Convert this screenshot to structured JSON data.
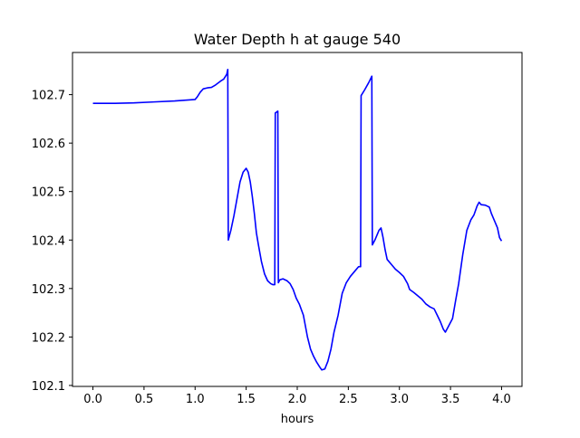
{
  "chart_data": {
    "type": "line",
    "title": "Water Depth h at gauge 540",
    "xlabel": "hours",
    "ylabel": "",
    "xlim": [
      -0.2,
      4.2
    ],
    "ylim": [
      102.098,
      102.787
    ],
    "xticks": [
      0.0,
      0.5,
      1.0,
      1.5,
      2.0,
      2.5,
      3.0,
      3.5,
      4.0
    ],
    "xtick_labels": [
      "0.0",
      "0.5",
      "1.0",
      "1.5",
      "2.0",
      "2.5",
      "3.0",
      "3.5",
      "4.0"
    ],
    "yticks": [
      102.1,
      102.2,
      102.3,
      102.4,
      102.5,
      102.6,
      102.7
    ],
    "ytick_labels": [
      "102.1",
      "102.2",
      "102.3",
      "102.4",
      "102.5",
      "102.6",
      "102.7"
    ],
    "grid": false,
    "series": [
      {
        "color": "#0000ff",
        "x": [
          0.0,
          0.2,
          0.4,
          0.6,
          0.8,
          1.0,
          1.02,
          1.05,
          1.08,
          1.12,
          1.16,
          1.2,
          1.25,
          1.28,
          1.31,
          1.32,
          1.325,
          1.35,
          1.38,
          1.41,
          1.44,
          1.47,
          1.5,
          1.52,
          1.54,
          1.56,
          1.58,
          1.6,
          1.62,
          1.65,
          1.68,
          1.71,
          1.74,
          1.76,
          1.78,
          1.785,
          1.81,
          1.815,
          1.83,
          1.86,
          1.9,
          1.93,
          1.96,
          1.99,
          2.02,
          2.06,
          2.1,
          2.13,
          2.16,
          2.19,
          2.22,
          2.24,
          2.27,
          2.3,
          2.33,
          2.36,
          2.4,
          2.44,
          2.48,
          2.52,
          2.56,
          2.6,
          2.62,
          2.625,
          2.66,
          2.7,
          2.73,
          2.735,
          2.76,
          2.78,
          2.8,
          2.82,
          2.84,
          2.86,
          2.88,
          2.92,
          2.96,
          3.0,
          3.04,
          3.08,
          3.1,
          3.14,
          3.18,
          3.22,
          3.26,
          3.3,
          3.34,
          3.37,
          3.4,
          3.43,
          3.45,
          3.48,
          3.52,
          3.55,
          3.58,
          3.62,
          3.66,
          3.7,
          3.73,
          3.76,
          3.78,
          3.8,
          3.84,
          3.88,
          3.9,
          3.93,
          3.96,
          3.98,
          4.0
        ],
        "y": [
          102.682,
          102.682,
          102.683,
          102.685,
          102.687,
          102.69,
          102.695,
          102.705,
          102.712,
          102.714,
          102.715,
          102.72,
          102.728,
          102.732,
          102.742,
          102.752,
          102.4,
          102.42,
          102.45,
          102.485,
          102.52,
          102.54,
          102.548,
          102.54,
          102.52,
          102.49,
          102.455,
          102.415,
          102.39,
          102.355,
          102.33,
          102.316,
          102.31,
          102.308,
          102.308,
          102.662,
          102.666,
          102.312,
          102.318,
          102.32,
          102.316,
          102.31,
          102.298,
          102.28,
          102.268,
          102.245,
          102.2,
          102.175,
          102.16,
          102.148,
          102.138,
          102.132,
          102.134,
          102.15,
          102.175,
          102.21,
          102.245,
          102.29,
          102.312,
          102.325,
          102.335,
          102.345,
          102.345,
          102.698,
          102.71,
          102.725,
          102.738,
          102.39,
          102.4,
          102.41,
          102.42,
          102.425,
          102.405,
          102.38,
          102.36,
          102.35,
          102.34,
          102.333,
          102.325,
          102.31,
          102.298,
          102.292,
          102.285,
          102.278,
          102.268,
          102.262,
          102.258,
          102.245,
          102.232,
          102.216,
          102.21,
          102.222,
          102.238,
          102.275,
          102.31,
          102.37,
          102.42,
          102.442,
          102.452,
          102.47,
          102.478,
          102.473,
          102.472,
          102.468,
          102.455,
          102.44,
          102.425,
          102.405,
          102.398
        ]
      }
    ]
  }
}
